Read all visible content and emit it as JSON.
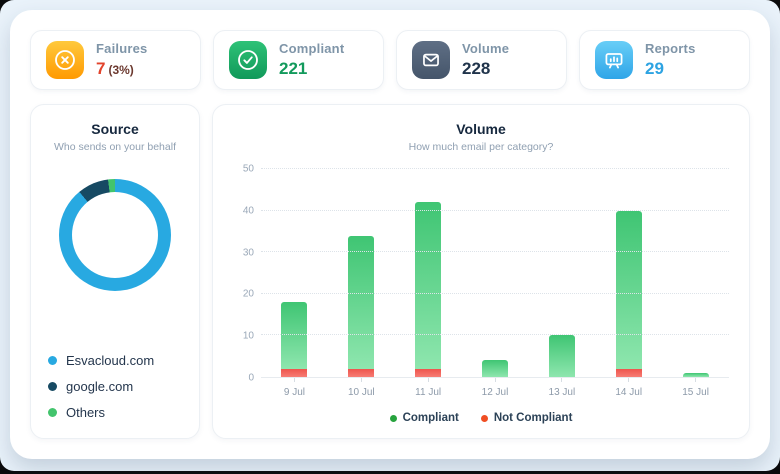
{
  "stats": [
    {
      "label": "Failures",
      "value": "7",
      "suffix": "(3%)",
      "value_color": "#e2432b",
      "suffix_color": "#6b382e",
      "icon": "circle-x-icon"
    },
    {
      "label": "Compliant",
      "value": "221",
      "value_color": "#129a5c",
      "icon": "circle-check-icon"
    },
    {
      "label": "Volume",
      "value": "228",
      "value_color": "#20344b",
      "icon": "envelope-icon"
    },
    {
      "label": "Reports",
      "value": "29",
      "value_color": "#2da3e2",
      "icon": "presentation-board-icon"
    }
  ],
  "source": {
    "title": "Source",
    "subtitle": "Who sends on your behalf",
    "slices": [
      {
        "label": "Esvacloud.com",
        "color": "#28a9e1",
        "pct": 89
      },
      {
        "label": "google.com",
        "color": "#174a63",
        "pct": 9
      },
      {
        "label": "Others",
        "color": "#43c46d",
        "pct": 2
      }
    ]
  },
  "chart_data": {
    "type": "bar",
    "stacked": true,
    "title": "Volume",
    "subtitle": "How much email per category?",
    "categories": [
      "9 Jul",
      "10 Jul",
      "11 Jul",
      "12 Jul",
      "13 Jul",
      "14 Jul",
      "15 Jul"
    ],
    "series": [
      {
        "name": "Compliant",
        "color": "#47c87a",
        "values": [
          16,
          32,
          40,
          4,
          10,
          38,
          1
        ]
      },
      {
        "name": "Not Compliant",
        "color": "#f2615b",
        "values": [
          2,
          2,
          2,
          0,
          0,
          2,
          0
        ]
      }
    ],
    "totals": [
      18,
      34,
      42,
      4,
      10,
      40,
      1
    ],
    "ylim": [
      0,
      50
    ],
    "yticks": [
      0,
      10,
      20,
      30,
      40,
      50
    ],
    "grid": "dotted-horizontal",
    "legend_position": "bottom",
    "legend": [
      {
        "label": "Compliant",
        "color": "#27a33e"
      },
      {
        "label": "Not Compliant",
        "color": "#f04e23"
      }
    ]
  }
}
